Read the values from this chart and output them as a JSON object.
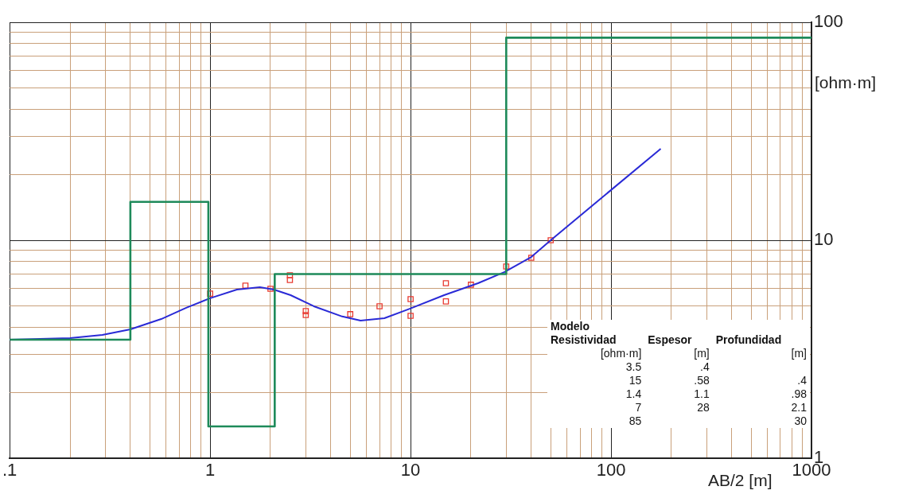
{
  "chart_data": {
    "type": "line",
    "xlabel": "AB/2 [m]",
    "ylabel": "[ohm·m]",
    "log": "xy",
    "grid": true,
    "legend": false,
    "xlim": [
      0.1,
      1000
    ],
    "ylim": [
      1,
      100
    ],
    "xticks": [
      {
        "value": 0.1,
        "label": ".1"
      },
      {
        "value": 0.2,
        "label": null
      },
      {
        "value": 0.3,
        "label": null
      },
      {
        "value": 0.4,
        "label": null
      },
      {
        "value": 0.5,
        "label": null
      },
      {
        "value": 0.6,
        "label": null
      },
      {
        "value": 0.7,
        "label": null
      },
      {
        "value": 0.8,
        "label": null
      },
      {
        "value": 0.9,
        "label": null
      },
      1,
      {
        "value": 2,
        "label": null
      },
      {
        "value": 3,
        "label": null
      },
      {
        "value": 4,
        "label": null
      },
      {
        "value": 5,
        "label": null
      },
      {
        "value": 6,
        "label": null
      },
      {
        "value": 7,
        "label": null
      },
      {
        "value": 8,
        "label": null
      },
      {
        "value": 9,
        "label": null
      },
      10,
      {
        "value": 20,
        "label": null
      },
      {
        "value": 30,
        "label": null
      },
      {
        "value": 40,
        "label": null
      },
      {
        "value": 50,
        "label": null
      },
      {
        "value": 60,
        "label": null
      },
      {
        "value": 70,
        "label": null
      },
      {
        "value": 80,
        "label": null
      },
      {
        "value": 90,
        "label": null
      },
      100,
      {
        "value": 200,
        "label": null
      },
      {
        "value": 300,
        "label": null
      },
      {
        "value": 400,
        "label": null
      },
      {
        "value": 500,
        "label": null
      },
      {
        "value": 600,
        "label": null
      },
      {
        "value": 700,
        "label": null
      },
      {
        "value": 800,
        "label": null
      },
      {
        "value": 900,
        "label": null
      },
      1000
    ],
    "yticks": [
      1,
      {
        "value": 2,
        "label": null
      },
      {
        "value": 3,
        "label": null
      },
      {
        "value": 4,
        "label": null
      },
      {
        "value": 5,
        "label": null
      },
      {
        "value": 6,
        "label": null
      },
      {
        "value": 7,
        "label": null
      },
      {
        "value": 8,
        "label": null
      },
      {
        "value": 9,
        "label": null
      },
      10,
      {
        "value": 20,
        "label": null
      },
      {
        "value": 30,
        "label": null
      },
      {
        "value": 40,
        "label": null
      },
      {
        "value": 50,
        "label": null
      },
      {
        "value": 60,
        "label": null
      },
      {
        "value": 70,
        "label": null
      },
      {
        "value": 80,
        "label": null
      },
      {
        "value": 90,
        "label": null
      },
      100
    ],
    "series": [
      {
        "type": "step",
        "color": "#1e8a5a",
        "marker": "none",
        "x": [
          0.1,
          0.4,
          0.98,
          2.1,
          30,
          1000
        ],
        "values": [
          3.5,
          15,
          1.4,
          7,
          85,
          85
        ]
      },
      {
        "type": "line",
        "color": "#2a2ad6",
        "marker": "none",
        "x": [
          0.1,
          0.2,
          0.29,
          0.4,
          0.57,
          0.76,
          1.0,
          1.36,
          1.77,
          2.08,
          2.52,
          3.29,
          4.56,
          5.63,
          7.4,
          9.9,
          14.7,
          21.7,
          29.3,
          40,
          50,
          100,
          177
        ],
        "values": [
          3.5,
          3.56,
          3.68,
          3.9,
          4.35,
          4.9,
          5.42,
          5.94,
          6.09,
          5.94,
          5.6,
          4.98,
          4.47,
          4.28,
          4.39,
          4.85,
          5.6,
          6.35,
          7.14,
          8.38,
          10,
          17,
          26.3
        ]
      },
      {
        "type": "scatter",
        "color": "#e83a30",
        "marker": "square",
        "x": [
          1,
          1.5,
          2,
          2.5,
          2.5,
          3,
          3,
          5,
          7,
          10,
          10,
          15,
          15,
          20,
          30,
          40,
          50
        ],
        "values": [
          5.69,
          6.19,
          5.99,
          6.91,
          6.57,
          4.73,
          4.54,
          4.58,
          4.98,
          5.37,
          4.5,
          6.35,
          5.24,
          6.25,
          7.58,
          8.31,
          10
        ]
      }
    ],
    "annotations": [
      "Modelo",
      "Resistividad\tEspesor\tProfundidad",
      "[ohm·m]\t[m]\t[m]",
      "3.5\t.4\t",
      "15\t.58\t.4",
      "1.4\t1.1\t.98",
      "7\t28\t2.1",
      "85\t\t30"
    ]
  }
}
